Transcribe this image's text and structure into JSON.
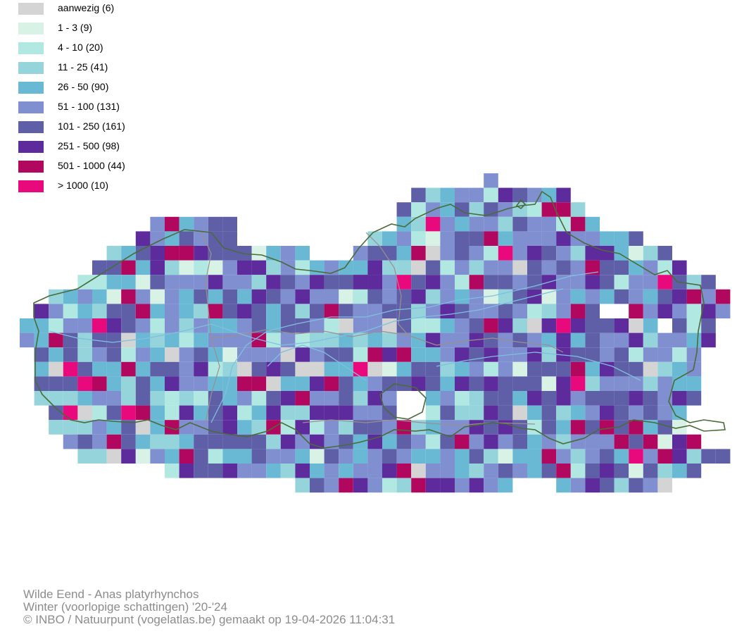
{
  "legend": [
    {
      "label": "aanwezig (6)",
      "color": "#d4d4d4"
    },
    {
      "label": "1 - 3 (9)",
      "color": "#d8f2e6"
    },
    {
      "label": "4 - 10 (20)",
      "color": "#b2e8e2"
    },
    {
      "label": "11 - 25 (41)",
      "color": "#95d4da"
    },
    {
      "label": "26 - 50 (90)",
      "color": "#6ab9d4"
    },
    {
      "label": "51 - 100 (131)",
      "color": "#7f8fd0"
    },
    {
      "label": "101 - 250 (161)",
      "color": "#5f5fa8"
    },
    {
      "label": "251 - 500 (98)",
      "color": "#5e2b9c"
    },
    {
      "label": "501 - 1000 (44)",
      "color": "#b1075e"
    },
    {
      "label": "> 1000 (10)",
      "color": "#e8097d"
    }
  ],
  "map": {
    "boundary_color": "#4a6b3a",
    "river_color": "#7fbfe0",
    "province_border_color": "#9a8f8f"
  },
  "caption": {
    "title": "Wilde Eend - Anas platyrhynchos",
    "period": "Winter (voorlopige schattingen) '20-'24",
    "credit": "© INBO / Natuurpunt (vogelatlas.be) gemaakt op 19-04-2026 11:04:31"
  }
}
